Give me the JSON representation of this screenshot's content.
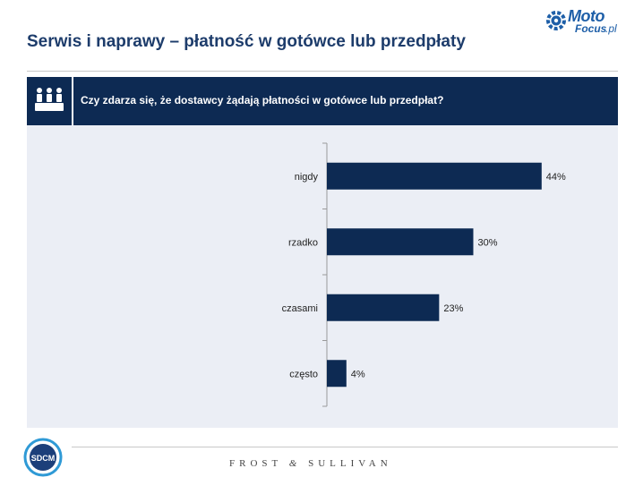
{
  "header": {
    "title": "Serwis i naprawy – płatność w gotówce lub przedpłaty",
    "logo": {
      "moto": "Moto",
      "focus": "Focus",
      "domain": ".pl",
      "icon": "gear-icon"
    }
  },
  "question": {
    "text": "Czy zdarza się, że dostawcy żądają płatności w gotówce lub przedpłat?",
    "icon": "audience-icon"
  },
  "footer": {
    "left_logo": "SDCM",
    "brand_left": "FROST",
    "brand_amp": "&",
    "brand_right": "SULLIVAN"
  },
  "colors": {
    "title": "#1d3c6b",
    "band": "#0d2a53",
    "bar": "#0d2a53",
    "panel": "#ebeef5"
  },
  "chart_data": {
    "type": "bar",
    "orientation": "horizontal",
    "categories": [
      "nigdy",
      "rzadko",
      "czasami",
      "często"
    ],
    "values": [
      44,
      30,
      23,
      4
    ],
    "value_labels": [
      "44%",
      "30%",
      "23%",
      "4%"
    ],
    "unit": "%",
    "xlim": [
      0,
      100
    ],
    "title": "",
    "xlabel": "",
    "ylabel": "",
    "grid": false,
    "legend": "none"
  }
}
